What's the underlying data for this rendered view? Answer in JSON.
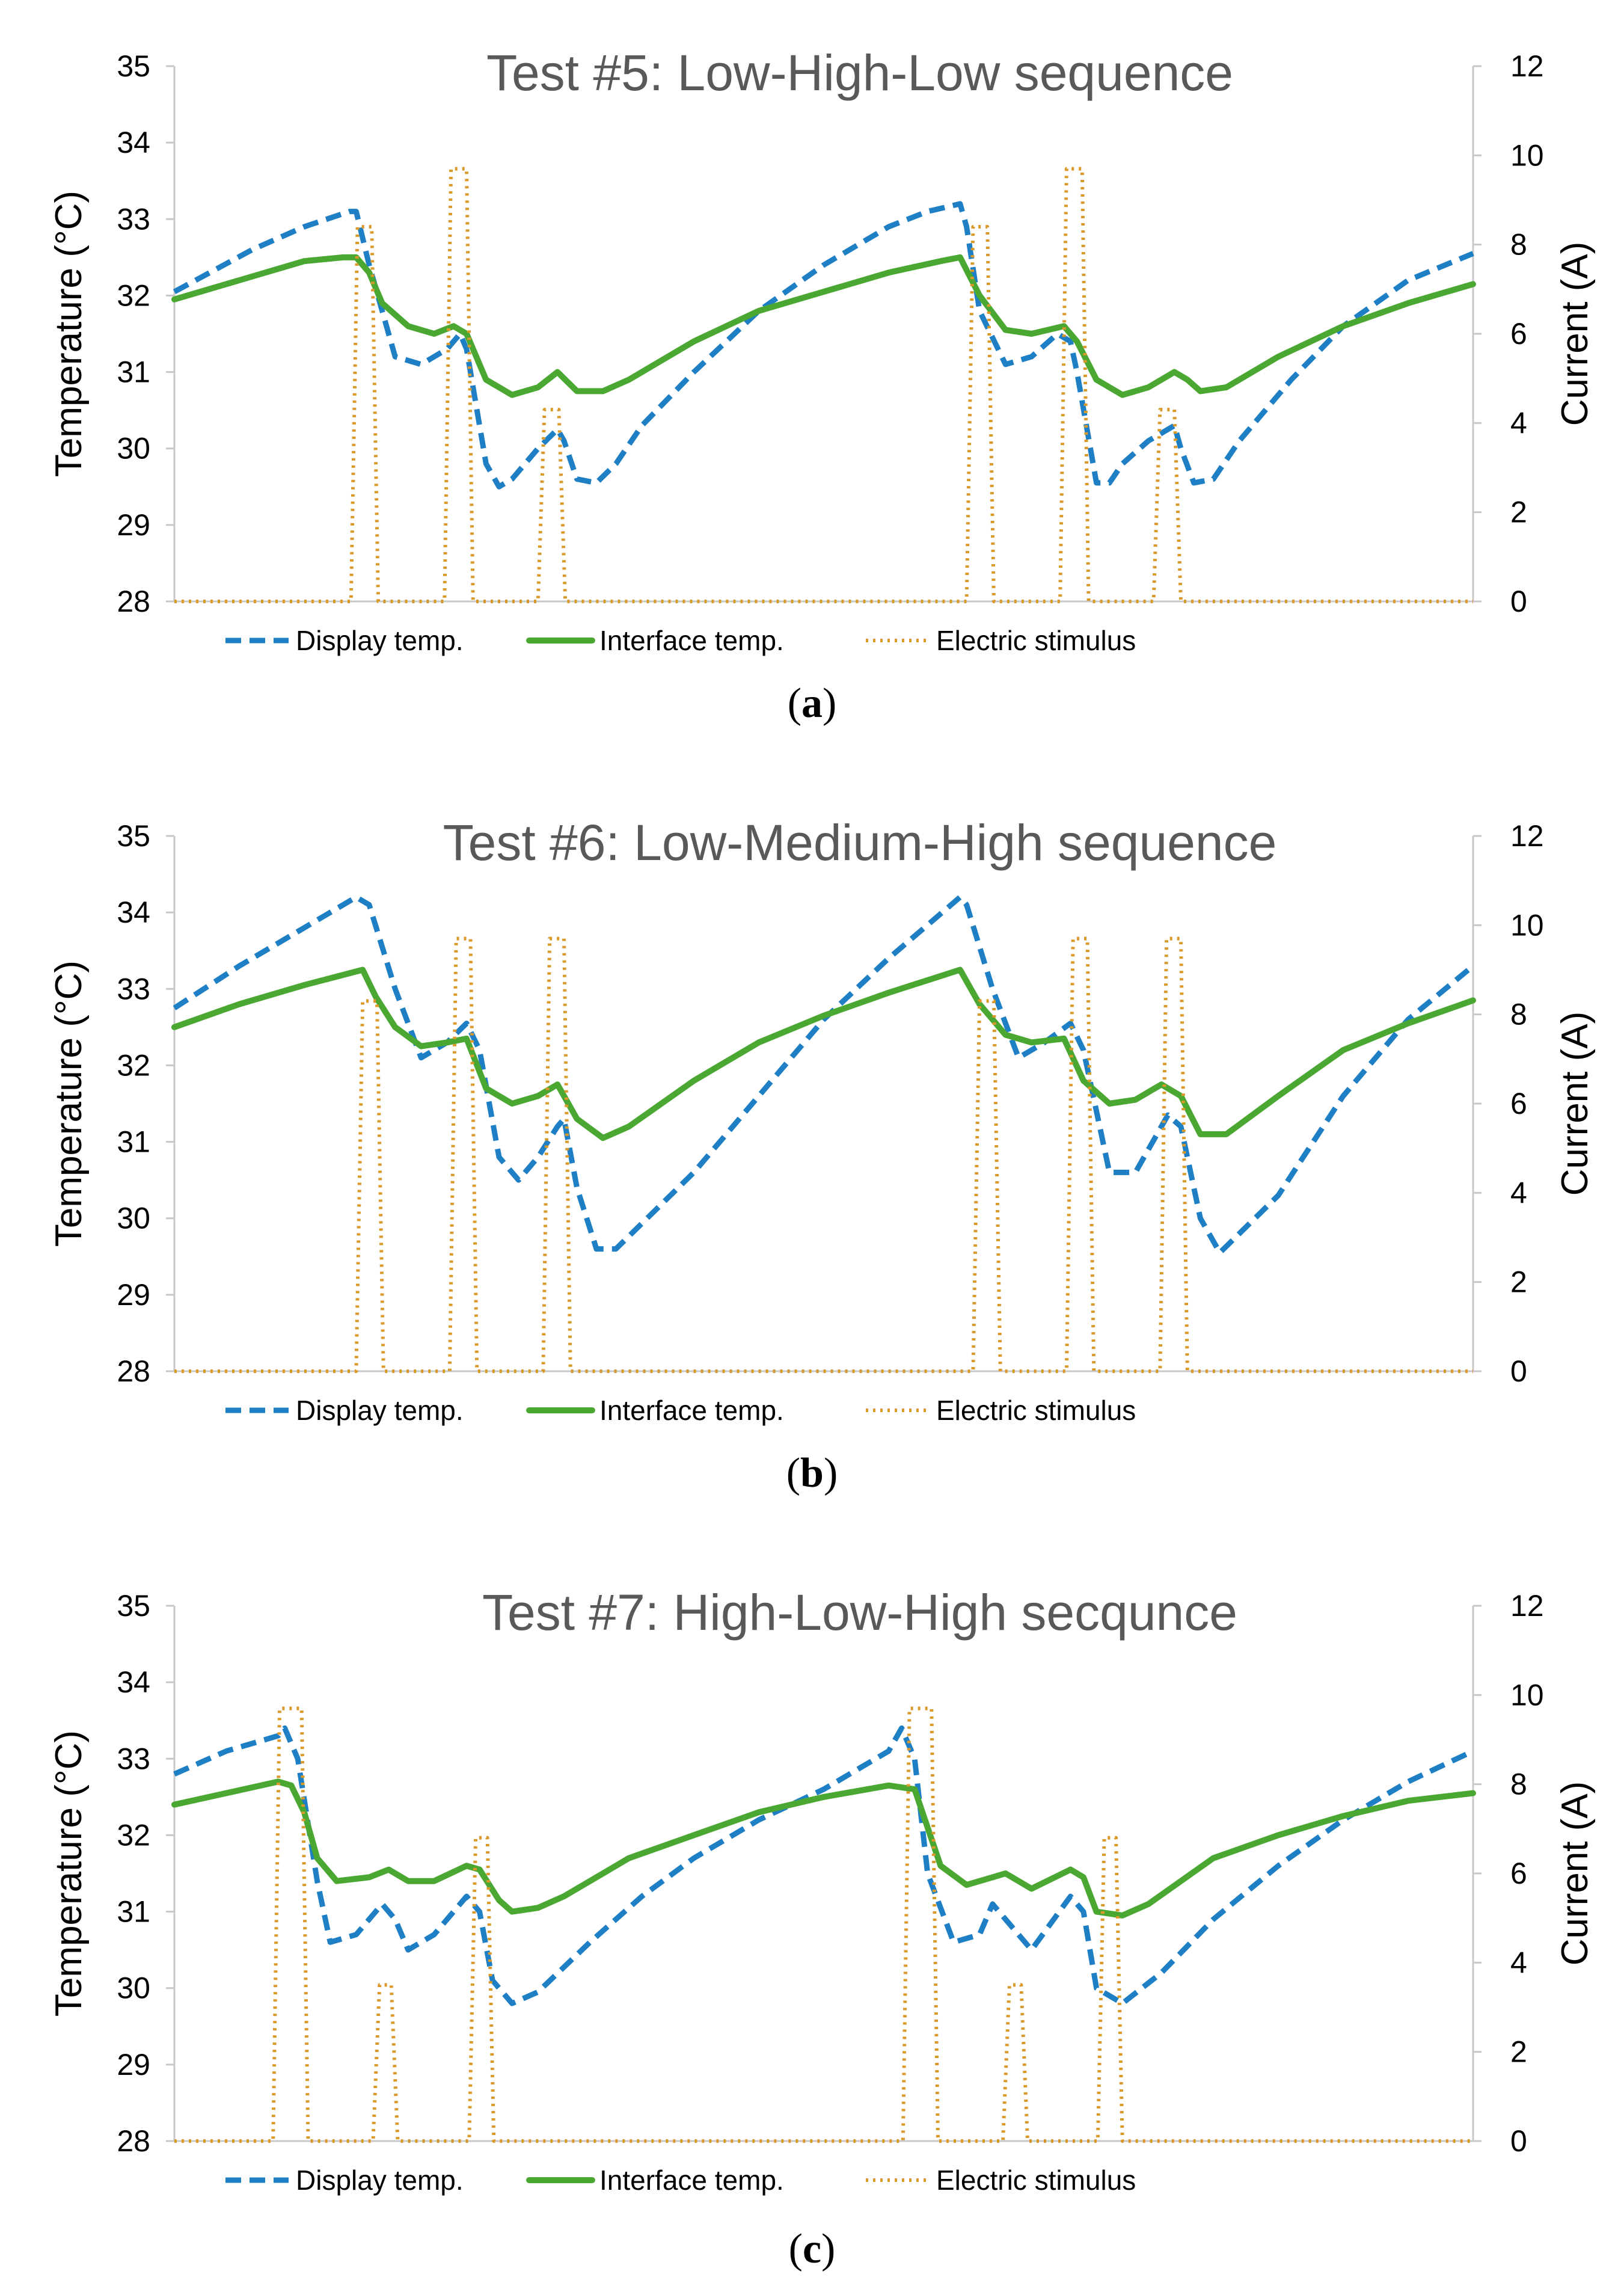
{
  "colors": {
    "display": "#1f7fc4",
    "interface": "#4aa832",
    "stimulus": "#d99a2b",
    "axis": "#c8c8c8",
    "title": "#595959"
  },
  "chart_data": [
    {
      "type": "line",
      "panel_label_open": "(",
      "panel_label_letter": "a",
      "panel_label_close": ")",
      "title": "Test #5: Low-High-Low sequence",
      "ylabel": "Temperature (°C)",
      "y2label": "Current (A)",
      "ylim": [
        28,
        35
      ],
      "y2lim": [
        0,
        12
      ],
      "yticks": [
        "28",
        "29",
        "30",
        "31",
        "32",
        "33",
        "34",
        "35"
      ],
      "y2ticks": [
        "0",
        "2",
        "4",
        "6",
        "8",
        "10",
        "12"
      ],
      "xlim": [
        0,
        100
      ],
      "legend": [
        "Display temp.",
        "Interface temp.",
        "Electric stimulus"
      ],
      "series": [
        {
          "name": "Display temp.",
          "axis": "left",
          "style": "dashed",
          "x": [
            0,
            6,
            10,
            13.5,
            14,
            15,
            17,
            19,
            21,
            22,
            22.5,
            24,
            25,
            26,
            28,
            29.5,
            30,
            31,
            32.5,
            34,
            36,
            40,
            45,
            50,
            55,
            58,
            60.5,
            61,
            62,
            64,
            66,
            68,
            69,
            69.5,
            71,
            72,
            73,
            75,
            77,
            77.5,
            78.5,
            80,
            82,
            86,
            90,
            95,
            100
          ],
          "values": [
            32.05,
            32.6,
            32.9,
            33.1,
            33.1,
            32.4,
            31.2,
            31.1,
            31.3,
            31.5,
            31.3,
            29.8,
            29.5,
            29.6,
            30.0,
            30.25,
            30.1,
            29.6,
            29.55,
            29.8,
            30.3,
            31.0,
            31.8,
            32.4,
            32.9,
            33.1,
            33.2,
            32.9,
            31.8,
            31.1,
            31.2,
            31.5,
            31.4,
            31.0,
            29.55,
            29.55,
            29.8,
            30.1,
            30.3,
            30.0,
            29.55,
            29.6,
            30.1,
            30.9,
            31.6,
            32.2,
            32.55
          ]
        },
        {
          "name": "Interface temp.",
          "axis": "left",
          "style": "solid",
          "x": [
            0,
            5,
            10,
            13,
            14,
            15,
            16,
            18,
            20,
            21.5,
            22.5,
            24,
            26,
            28,
            29.5,
            31,
            33,
            35,
            40,
            45,
            50,
            55,
            59,
            60.5,
            62,
            64,
            66,
            68.5,
            69.5,
            71,
            73,
            75,
            77,
            78,
            79,
            81,
            85,
            90,
            95,
            100
          ],
          "values": [
            31.95,
            32.2,
            32.45,
            32.5,
            32.5,
            32.3,
            31.9,
            31.6,
            31.5,
            31.6,
            31.5,
            30.9,
            30.7,
            30.8,
            31.0,
            30.75,
            30.75,
            30.9,
            31.4,
            31.8,
            32.05,
            32.3,
            32.45,
            32.5,
            32.0,
            31.55,
            31.5,
            31.6,
            31.4,
            30.9,
            30.7,
            30.8,
            31.0,
            30.9,
            30.75,
            30.8,
            31.2,
            31.6,
            31.9,
            32.15
          ]
        },
        {
          "name": "Electric stimulus",
          "axis": "right",
          "style": "dotted",
          "x": [
            0,
            13.6,
            14.1,
            15.2,
            15.7,
            20.8,
            21.3,
            22.5,
            23.0,
            28.0,
            28.5,
            29.6,
            30.1,
            61.0,
            61.5,
            62.6,
            63.1,
            68.2,
            68.7,
            69.9,
            70.4,
            75.4,
            75.9,
            77.0,
            77.5,
            100
          ],
          "values": [
            0,
            0,
            8.4,
            8.4,
            0,
            0,
            9.7,
            9.7,
            0,
            0,
            4.3,
            4.3,
            0,
            0,
            8.4,
            8.4,
            0,
            0,
            9.7,
            9.7,
            0,
            0,
            4.3,
            4.3,
            0,
            0
          ]
        }
      ]
    },
    {
      "type": "line",
      "panel_label_open": "(",
      "panel_label_letter": "b",
      "panel_label_close": ")",
      "title": "Test #6: Low-Medium-High sequence",
      "ylabel": "Temperature (°C)",
      "y2label": "Current (A)",
      "ylim": [
        28,
        35
      ],
      "y2lim": [
        0,
        12
      ],
      "yticks": [
        "28",
        "29",
        "30",
        "31",
        "32",
        "33",
        "34",
        "35"
      ],
      "y2ticks": [
        "0",
        "2",
        "4",
        "6",
        "8",
        "10",
        "12"
      ],
      "xlim": [
        0,
        100
      ],
      "legend": [
        "Display temp.",
        "Interface temp.",
        "Electric stimulus"
      ],
      "series": [
        {
          "name": "Display temp.",
          "axis": "left",
          "style": "dashed",
          "x": [
            0,
            5,
            10,
            14,
            15,
            17,
            19,
            21,
            22.5,
            23.5,
            25,
            26.5,
            28,
            29.5,
            30,
            31,
            32.5,
            34,
            40,
            45,
            50,
            55,
            60.5,
            61,
            63,
            65,
            67,
            69,
            70,
            72,
            74,
            76.5,
            77.5,
            79,
            80.5,
            85,
            90,
            95,
            100
          ],
          "values": [
            32.75,
            33.3,
            33.8,
            34.2,
            34.1,
            33.0,
            32.1,
            32.3,
            32.55,
            32.2,
            30.8,
            30.5,
            30.8,
            31.2,
            31.3,
            30.4,
            29.6,
            29.6,
            30.6,
            31.6,
            32.6,
            33.4,
            34.2,
            34.1,
            33.0,
            32.1,
            32.3,
            32.55,
            32.2,
            30.6,
            30.6,
            31.35,
            31.2,
            30.0,
            29.55,
            30.3,
            31.6,
            32.6,
            33.3
          ]
        },
        {
          "name": "Interface temp.",
          "axis": "left",
          "style": "solid",
          "x": [
            0,
            5,
            10,
            14.5,
            15.5,
            17,
            19,
            21,
            22.5,
            24,
            26,
            28,
            29.5,
            31,
            33,
            35,
            40,
            45,
            50,
            55,
            60.5,
            62,
            64,
            66,
            68.5,
            70,
            72,
            74,
            76,
            77.5,
            79,
            81,
            85,
            90,
            95,
            100
          ],
          "values": [
            32.5,
            32.8,
            33.05,
            33.25,
            32.9,
            32.5,
            32.25,
            32.3,
            32.35,
            31.7,
            31.5,
            31.6,
            31.75,
            31.3,
            31.05,
            31.2,
            31.8,
            32.3,
            32.65,
            32.95,
            33.25,
            32.8,
            32.4,
            32.3,
            32.35,
            31.8,
            31.5,
            31.55,
            31.75,
            31.6,
            31.1,
            31.1,
            31.6,
            32.2,
            32.55,
            32.85
          ]
        },
        {
          "name": "Electric stimulus",
          "axis": "right",
          "style": "dotted",
          "x": [
            0,
            14.0,
            14.5,
            15.6,
            16.1,
            21.2,
            21.7,
            22.8,
            23.3,
            28.4,
            28.9,
            30.0,
            30.5,
            61.5,
            62.0,
            63.1,
            63.6,
            68.7,
            69.2,
            70.3,
            70.8,
            75.9,
            76.4,
            77.5,
            78.0,
            100
          ],
          "values": [
            0,
            0,
            8.3,
            8.3,
            0,
            0,
            9.7,
            9.7,
            0,
            0,
            9.7,
            9.7,
            0,
            0,
            8.3,
            8.3,
            0,
            0,
            9.7,
            9.7,
            0,
            0,
            9.7,
            9.7,
            0,
            0
          ]
        }
      ]
    },
    {
      "type": "line",
      "panel_label_open": "(",
      "panel_label_letter": "c",
      "panel_label_close": ")",
      "title": "Test #7: High-Low-High secqunce",
      "ylabel": "Temperature (°C)",
      "y2label": "Current (A)",
      "ylim": [
        28,
        35
      ],
      "y2lim": [
        0,
        12
      ],
      "yticks": [
        "28",
        "29",
        "30",
        "31",
        "32",
        "33",
        "34",
        "35"
      ],
      "y2ticks": [
        "0",
        "2",
        "4",
        "6",
        "8",
        "10",
        "12"
      ],
      "xlim": [
        0,
        100
      ],
      "legend": [
        "Display temp.",
        "Interface temp.",
        "Electric stimulus"
      ],
      "series": [
        {
          "name": "Display temp.",
          "axis": "left",
          "style": "dashed",
          "x": [
            0,
            4,
            8,
            8.5,
            9.5,
            11,
            12,
            14,
            16,
            17,
            18,
            20,
            22.5,
            23.5,
            24.5,
            26,
            28,
            32,
            36,
            40,
            45,
            50,
            55,
            56,
            57,
            58,
            60,
            62,
            63,
            64,
            66,
            69,
            70,
            71,
            73,
            76,
            80,
            85,
            90,
            95,
            100
          ],
          "values": [
            32.8,
            33.1,
            33.3,
            33.4,
            33.0,
            31.4,
            30.6,
            30.7,
            31.1,
            30.9,
            30.5,
            30.7,
            31.2,
            31.0,
            30.1,
            29.8,
            29.95,
            30.6,
            31.2,
            31.7,
            32.2,
            32.6,
            33.1,
            33.4,
            33.0,
            31.5,
            30.6,
            30.7,
            31.1,
            30.9,
            30.5,
            31.2,
            31.0,
            30.0,
            29.8,
            30.2,
            30.9,
            31.6,
            32.2,
            32.7,
            33.1
          ]
        },
        {
          "name": "Interface temp.",
          "axis": "left",
          "style": "solid",
          "x": [
            0,
            4,
            8,
            9,
            10,
            11,
            12.5,
            15,
            16.5,
            18,
            20,
            22.5,
            23.5,
            25,
            26,
            28,
            30,
            35,
            40,
            45,
            50,
            55,
            57,
            58,
            59,
            61,
            63,
            64,
            66,
            69,
            70,
            71,
            73,
            75,
            80,
            85,
            90,
            95,
            100
          ],
          "values": [
            32.4,
            32.55,
            32.7,
            32.65,
            32.3,
            31.7,
            31.4,
            31.45,
            31.55,
            31.4,
            31.4,
            31.6,
            31.55,
            31.15,
            31.0,
            31.05,
            31.2,
            31.7,
            32.0,
            32.3,
            32.5,
            32.65,
            32.6,
            32.1,
            31.6,
            31.35,
            31.45,
            31.5,
            31.3,
            31.55,
            31.45,
            31.0,
            30.95,
            31.1,
            31.7,
            32.0,
            32.25,
            32.45,
            32.55
          ]
        },
        {
          "name": "Electric stimulus",
          "axis": "right",
          "style": "dotted",
          "x": [
            0,
            7.6,
            8.1,
            9.8,
            10.3,
            15.3,
            15.8,
            16.7,
            17.2,
            22.7,
            23.2,
            24.1,
            24.6,
            56.1,
            56.6,
            58.3,
            58.8,
            63.8,
            64.3,
            65.2,
            65.7,
            71.1,
            71.6,
            72.5,
            73.0,
            100
          ],
          "values": [
            0,
            0,
            9.7,
            9.7,
            0,
            0,
            3.5,
            3.5,
            0,
            0,
            6.8,
            6.8,
            0,
            0,
            9.7,
            9.7,
            0,
            0,
            3.5,
            3.5,
            0,
            0,
            6.8,
            6.8,
            0,
            0
          ]
        }
      ]
    }
  ]
}
